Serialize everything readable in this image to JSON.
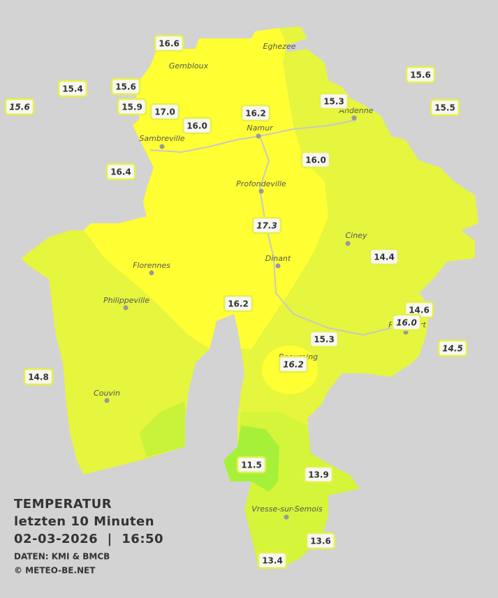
{
  "title": {
    "line1": "TEMPERATUR",
    "line2": "letzten 10 Minuten",
    "line3": "02-03-2026  |  16:50"
  },
  "credits": [
    "DATEN: KMI & BMCB",
    "© METEO-BE.NET"
  ],
  "cities": [
    "Eghezee",
    "Gembloux",
    "Andenne",
    "Namur",
    "Sambreville",
    "Profondeville",
    "Ciney",
    "Dinant",
    "Florennes",
    "Philippeville",
    "Rochefort",
    "Beauraing",
    "Couvin",
    "Vresse-sur-Semois"
  ],
  "stations": [
    {
      "value": "16.6"
    },
    {
      "value": "15.4"
    },
    {
      "value": "15.6"
    },
    {
      "value": "15.6",
      "italic": true
    },
    {
      "value": "15.9"
    },
    {
      "value": "17.0"
    },
    {
      "value": "16.0"
    },
    {
      "value": "16.2"
    },
    {
      "value": "15.3"
    },
    {
      "value": "15.6"
    },
    {
      "value": "15.5"
    },
    {
      "value": "16.4"
    },
    {
      "value": "16.0"
    },
    {
      "value": "17.3",
      "italic": true
    },
    {
      "value": "14.4"
    },
    {
      "value": "16.2"
    },
    {
      "value": "14.6"
    },
    {
      "value": "16.0",
      "italic": true
    },
    {
      "value": "15.3"
    },
    {
      "value": "14.5",
      "italic": true
    },
    {
      "value": "16.2",
      "italic": true
    },
    {
      "value": "14.8"
    },
    {
      "value": "11.5"
    },
    {
      "value": "13.9"
    },
    {
      "value": "13.6"
    },
    {
      "value": "13.4"
    }
  ]
}
